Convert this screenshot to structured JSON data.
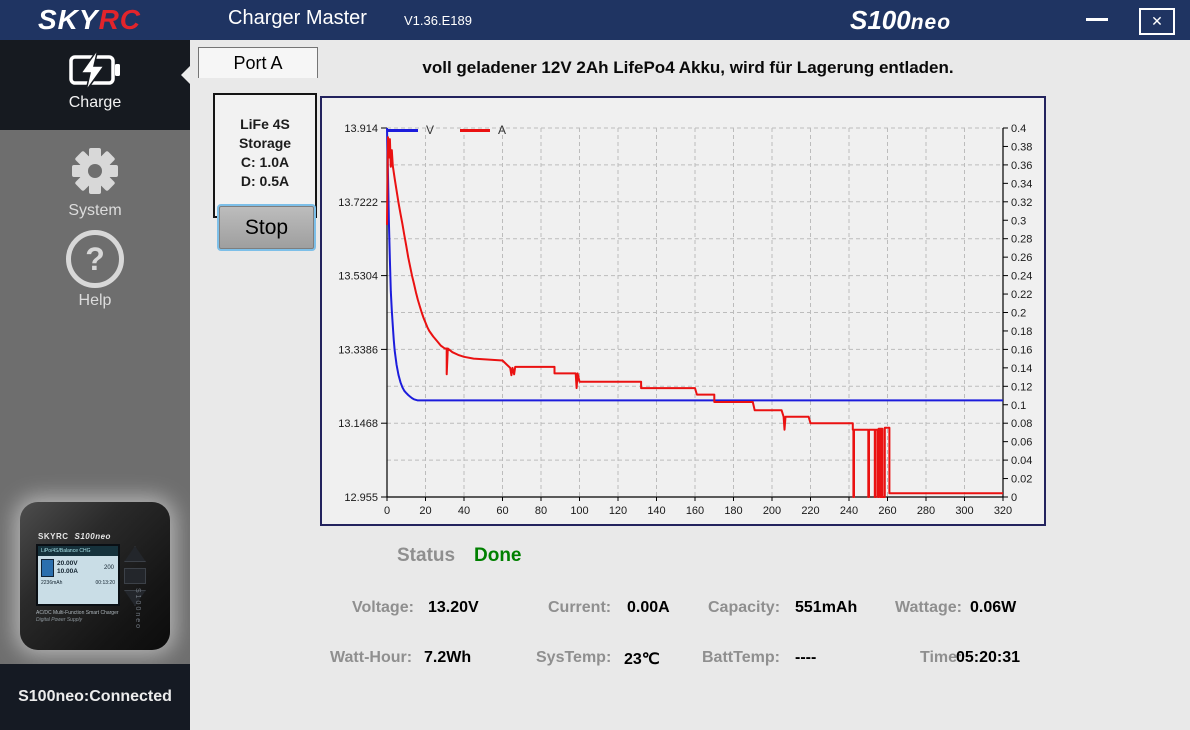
{
  "titlebar": {
    "brand_sky": "SKY",
    "brand_rc": "RC",
    "app_title": "Charger Master",
    "version": "V1.36.E189",
    "model_main": "S100",
    "model_sub": "neo",
    "close_glyph": "✕"
  },
  "sidebar": {
    "items": [
      {
        "label": "Charge",
        "icon": "battery-charge-icon",
        "active": true
      },
      {
        "label": "System",
        "icon": "gear-icon",
        "active": false
      },
      {
        "label": "Help",
        "icon": "question-icon",
        "active": false
      }
    ],
    "help_glyph": "?",
    "device": {
      "brand": "SKYRC",
      "model": "S100neo",
      "screen_header": "LiPo/4S/Balance CHG",
      "screen_volt": "20.00V",
      "screen_amp": "10.00A",
      "screen_cell": "200",
      "screen_mah": "2236mAh",
      "screen_time": "00:13:20",
      "caption1": "AC/DC Multi-Function Smart Charger",
      "caption2": "Digital Power Supply"
    },
    "connection_status": "S100neo:Connected"
  },
  "main": {
    "tab": "Port A",
    "heading": "voll geladener 12V 2Ah LifePo4 Akku, wird für Lagerung entladen.",
    "profile_box": {
      "lines": [
        "LiFe 4S",
        "Storage",
        "C: 1.0A",
        "D: 0.5A"
      ]
    },
    "stop_button": "Stop",
    "status_label": "Status",
    "status_value": "Done",
    "stats_row1": [
      {
        "label": "Voltage:",
        "value": "13.20V"
      },
      {
        "label": "Current:",
        "value": "0.00A"
      },
      {
        "label": "Capacity:",
        "value": "551mAh"
      },
      {
        "label": "Wattage:",
        "value": "0.06W"
      }
    ],
    "stats_row2": [
      {
        "label": "Watt-Hour:",
        "value": "7.2Wh"
      },
      {
        "label": "SysTemp:",
        "value": "23℃"
      },
      {
        "label": "BattTemp:",
        "value": "----"
      },
      {
        "label": "Time:",
        "value": "05:20:31"
      }
    ]
  },
  "colors": {
    "titlebar_bg": "#1f3462",
    "brand_red": "#e3242b",
    "status_done_green": "#008000",
    "chart_border": "#23235e",
    "sidebar_bg": "#6e6e6e",
    "stop_focus_ring": "#7dbfe8"
  },
  "chart_data": {
    "type": "line",
    "grid": true,
    "legend_position": "top-left",
    "x_axis": {
      "min": 0,
      "max": 320,
      "tick_step": 20
    },
    "y_left": {
      "min": 12.955,
      "max": 13.914,
      "ticks": [
        13.914,
        13.7222,
        13.5304,
        13.3386,
        13.1468,
        12.955
      ]
    },
    "y_right": {
      "min": 0,
      "max": 0.4,
      "tick_step": 0.02
    },
    "series": [
      {
        "name": "V",
        "axis": "left",
        "color": "#1c1cdc",
        "points": [
          [
            0,
            13.914
          ],
          [
            0.5,
            13.79
          ],
          [
            1,
            13.67
          ],
          [
            1.5,
            13.57
          ],
          [
            2,
            13.49
          ],
          [
            2.5,
            13.44
          ],
          [
            3,
            13.4
          ],
          [
            3.5,
            13.365
          ],
          [
            4,
            13.335
          ],
          [
            5,
            13.298
          ],
          [
            6,
            13.272
          ],
          [
            7,
            13.253
          ],
          [
            8,
            13.24
          ],
          [
            9,
            13.231
          ],
          [
            10,
            13.225
          ],
          [
            11,
            13.22
          ],
          [
            12,
            13.216
          ],
          [
            13,
            13.212
          ],
          [
            14,
            13.209
          ],
          [
            16,
            13.206
          ],
          [
            320,
            13.206
          ]
        ]
      },
      {
        "name": "A",
        "axis": "right",
        "color": "#ea1111",
        "points": [
          [
            0,
            0.295
          ],
          [
            0.5,
            0.39
          ],
          [
            1,
            0.368
          ],
          [
            1.5,
            0.388
          ],
          [
            2,
            0.358
          ],
          [
            2.5,
            0.376
          ],
          [
            3,
            0.359
          ],
          [
            4,
            0.345
          ],
          [
            5,
            0.332
          ],
          [
            6,
            0.319
          ],
          [
            7,
            0.307
          ],
          [
            8,
            0.296
          ],
          [
            9,
            0.284
          ],
          [
            10,
            0.272
          ],
          [
            11,
            0.26
          ],
          [
            12,
            0.25
          ],
          [
            13,
            0.24
          ],
          [
            14,
            0.231
          ],
          [
            15,
            0.222
          ],
          [
            16,
            0.214
          ],
          [
            17,
            0.207
          ],
          [
            18,
            0.2
          ],
          [
            19,
            0.194
          ],
          [
            20,
            0.189
          ],
          [
            21,
            0.184
          ],
          [
            22,
            0.18
          ],
          [
            24,
            0.174
          ],
          [
            26,
            0.169
          ],
          [
            28,
            0.164
          ],
          [
            30,
            0.161
          ],
          [
            31,
            0.161
          ],
          [
            31,
            0.133
          ],
          [
            31.6,
            0.161
          ],
          [
            34,
            0.157
          ],
          [
            37,
            0.154
          ],
          [
            40,
            0.152
          ],
          [
            45,
            0.15
          ],
          [
            52,
            0.149
          ],
          [
            60,
            0.148
          ],
          [
            64,
            0.14
          ],
          [
            64.6,
            0.132
          ],
          [
            65.2,
            0.14
          ],
          [
            66,
            0.133
          ],
          [
            66.6,
            0.141
          ],
          [
            70,
            0.141
          ],
          [
            87,
            0.141
          ],
          [
            87,
            0.134
          ],
          [
            98,
            0.134
          ],
          [
            98.5,
            0.118
          ],
          [
            99,
            0.134
          ],
          [
            100,
            0.125
          ],
          [
            132,
            0.125
          ],
          [
            132,
            0.118
          ],
          [
            160,
            0.118
          ],
          [
            161,
            0.111
          ],
          [
            170,
            0.111
          ],
          [
            170,
            0.103
          ],
          [
            190,
            0.103
          ],
          [
            191,
            0.094
          ],
          [
            205,
            0.094
          ],
          [
            206,
            0.087
          ],
          [
            206.5,
            0.073
          ],
          [
            207,
            0.087
          ],
          [
            219,
            0.087
          ],
          [
            220,
            0.08
          ],
          [
            242,
            0.08
          ],
          [
            242,
            0.073
          ],
          [
            242.3,
            0.073
          ],
          [
            242.3,
            0
          ],
          [
            242.6,
            0
          ],
          [
            242.6,
            0.073
          ],
          [
            250,
            0.073
          ],
          [
            250,
            0
          ],
          [
            250.4,
            0
          ],
          [
            250.4,
            0.073
          ],
          [
            253.4,
            0.073
          ],
          [
            253.4,
            0
          ],
          [
            253.8,
            0
          ],
          [
            253.8,
            0.073
          ],
          [
            255,
            0.073
          ],
          [
            255,
            0
          ],
          [
            255.4,
            0
          ],
          [
            255.4,
            0.074
          ],
          [
            256.2,
            0.074
          ],
          [
            256.2,
            0
          ],
          [
            256.6,
            0
          ],
          [
            256.6,
            0.074
          ],
          [
            257.4,
            0.074
          ],
          [
            257.4,
            0
          ],
          [
            258.6,
            0
          ],
          [
            258.6,
            0.075
          ],
          [
            261,
            0.075
          ],
          [
            261,
            0.004
          ],
          [
            320,
            0.004
          ]
        ]
      }
    ]
  }
}
